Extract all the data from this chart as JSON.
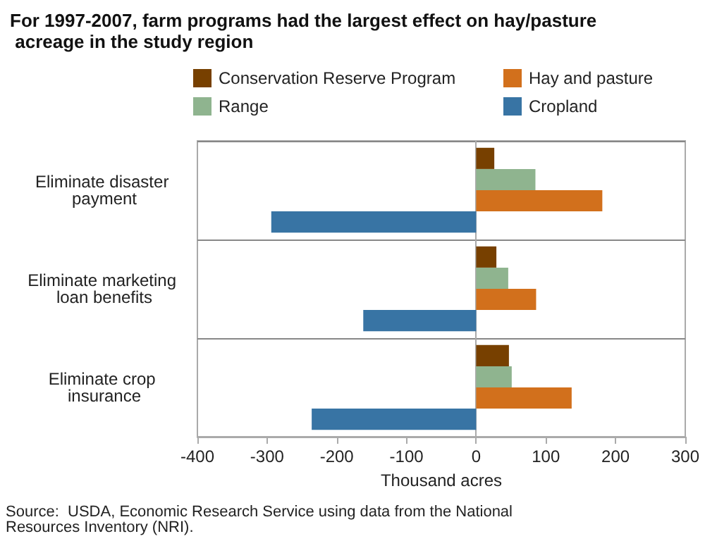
{
  "chart_data": {
    "type": "bar",
    "orientation": "horizontal",
    "title": "For 1997-2007, farm programs had the largest effect on hay/pasture acreage in the study region",
    "xlabel": "Thousand acres",
    "categories": [
      "Eliminate disaster payment",
      "Eliminate marketing loan benefits",
      "Eliminate crop insurance"
    ],
    "series": [
      {
        "name": "Conservation Reserve Program",
        "color": "#774000",
        "values": [
          26,
          29,
          47
        ]
      },
      {
        "name": "Range",
        "color": "#8fb48f",
        "values": [
          85,
          46,
          51
        ]
      },
      {
        "name": "Hay and pasture",
        "color": "#d2701c",
        "values": [
          181,
          86,
          137
        ]
      },
      {
        "name": "Cropland",
        "color": "#3874a4",
        "values": [
          -294,
          -162,
          -236
        ]
      }
    ],
    "xlim": [
      -400,
      300
    ],
    "xticks": [
      -400,
      -300,
      -200,
      -100,
      0,
      100,
      200,
      300
    ],
    "grid": "y",
    "legend": "top right",
    "annotations": [
      "Source:  USDA, Economic Research Service using data from the National Resources Inventory (NRI)."
    ]
  }
}
